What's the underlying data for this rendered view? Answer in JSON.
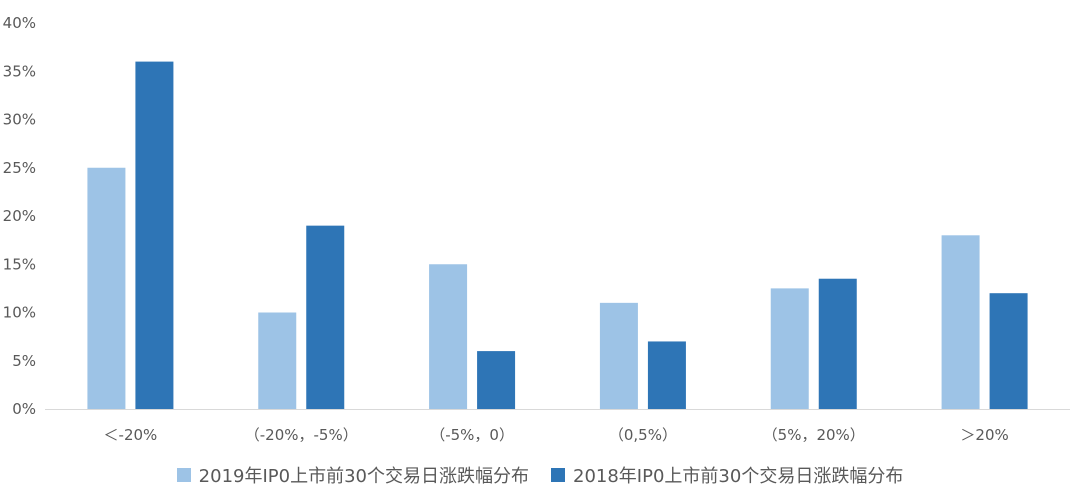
{
  "chart_data": {
    "type": "bar",
    "title": "",
    "xlabel": "",
    "ylabel": "",
    "categories": [
      "＜-20%",
      "（-20%，-5%）",
      "（-5%，0）",
      "（0,5%）",
      "（5%，20%）",
      "＞20%"
    ],
    "series": [
      {
        "name": "2019年IP0上市前30个交易日涨跌幅分布",
        "color": "#9DC3E6",
        "values": [
          0.25,
          0.1,
          0.15,
          0.11,
          0.125,
          0.18
        ]
      },
      {
        "name": "2018年IP0上市前30个交易日涨跌幅分布",
        "color": "#2E75B6",
        "values": [
          0.36,
          0.19,
          0.06,
          0.07,
          0.135,
          0.12
        ]
      }
    ],
    "ylim": [
      0,
      0.4
    ],
    "y_ticks": [
      "0%",
      "5%",
      "10%",
      "15%",
      "20%",
      "25%",
      "30%",
      "35%",
      "40%"
    ],
    "grid": false,
    "legend_position": "bottom"
  }
}
